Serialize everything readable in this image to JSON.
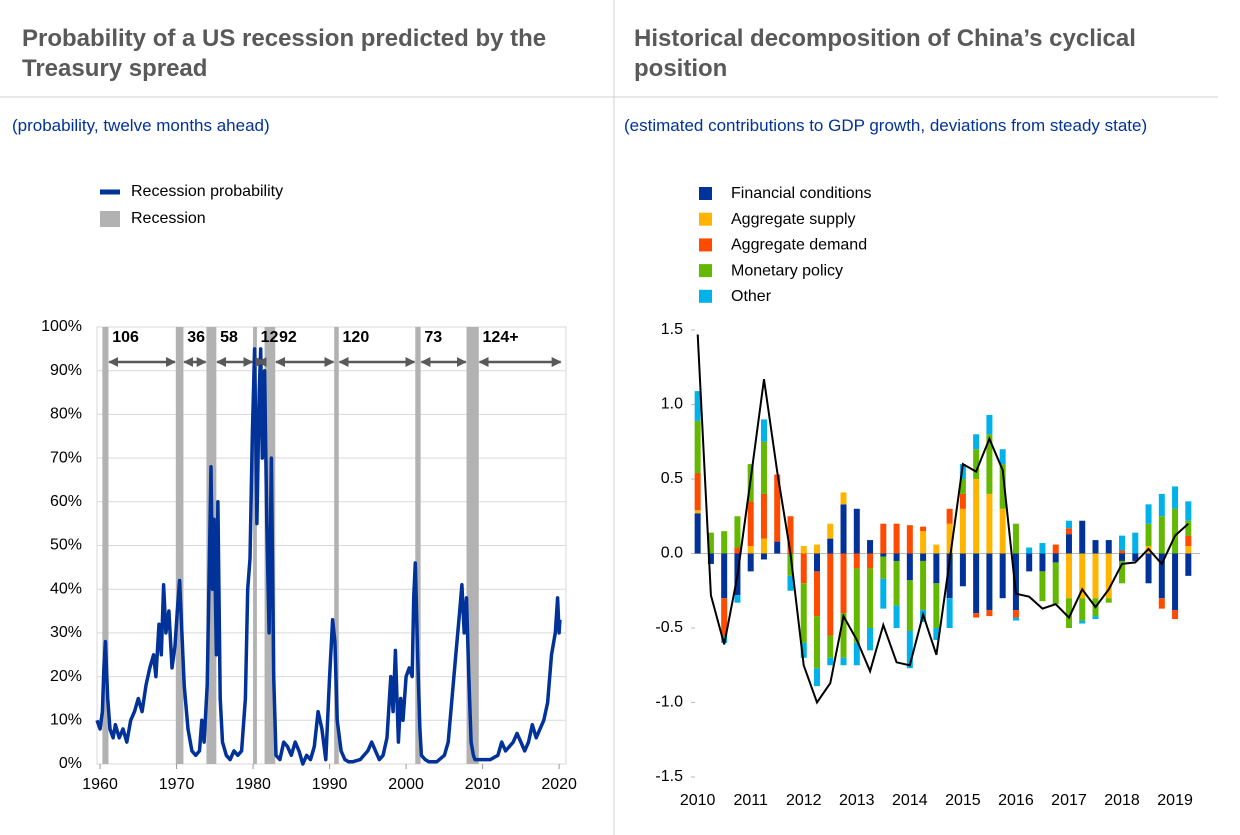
{
  "chart_data": [
    {
      "type": "line",
      "title": "Probability of a US recession predicted by the Treasury spread",
      "subtitle": "(probability, twelve months ahead)",
      "series": [
        {
          "name": "Recession probability",
          "color": "#003299",
          "x": [
            1959.6,
            1960.0,
            1960.3,
            1960.5,
            1960.7,
            1961.0,
            1961.3,
            1961.7,
            1962.0,
            1962.5,
            1963.0,
            1963.5,
            1964.0,
            1964.5,
            1965.0,
            1965.5,
            1966.0,
            1966.5,
            1967.0,
            1967.3,
            1967.7,
            1968.0,
            1968.3,
            1968.6,
            1969.0,
            1969.4,
            1969.8,
            1970.1,
            1970.4,
            1970.7,
            1971.0,
            1971.5,
            1972.0,
            1972.5,
            1973.0,
            1973.3,
            1973.6,
            1974.0,
            1974.3,
            1974.5,
            1974.7,
            1974.9,
            1975.2,
            1975.4,
            1975.7,
            1976.0,
            1976.5,
            1977.0,
            1977.5,
            1978.0,
            1978.5,
            1979.0,
            1979.3,
            1979.6,
            1979.9,
            1980.2,
            1980.5,
            1980.8,
            1981.0,
            1981.2,
            1981.5,
            1981.8,
            1982.1,
            1982.4,
            1982.7,
            1983.0,
            1983.5,
            1984.0,
            1984.5,
            1985.0,
            1985.5,
            1986.0,
            1986.5,
            1987.0,
            1987.5,
            1988.0,
            1988.5,
            1989.0,
            1989.5,
            1990.0,
            1990.4,
            1990.7,
            1991.0,
            1991.5,
            1992.0,
            1992.5,
            1993.0,
            1994.0,
            1995.0,
            1995.5,
            1996.0,
            1996.5,
            1997.0,
            1997.5,
            1998.0,
            1998.3,
            1998.6,
            1999.0,
            1999.3,
            1999.6,
            2000.0,
            2000.4,
            2000.8,
            2001.0,
            2001.2,
            2001.5,
            2001.8,
            2002.0,
            2002.5,
            2003.0,
            2004.0,
            2005.0,
            2005.5,
            2006.0,
            2006.5,
            2007.0,
            2007.3,
            2007.6,
            2007.9,
            2008.2,
            2008.5,
            2008.8,
            2009.0,
            2010.0,
            2011.0,
            2012.0,
            2012.5,
            2013.0,
            2013.5,
            2014.0,
            2014.5,
            2015.0,
            2015.5,
            2016.0,
            2016.5,
            2017.0,
            2017.5,
            2018.0,
            2018.5,
            2019.0,
            2019.5,
            2019.8,
            2020.0,
            2020.1
          ],
          "values": [
            10,
            8,
            12,
            22,
            28,
            15,
            8,
            6,
            9,
            6,
            8,
            5,
            10,
            12,
            15,
            12,
            18,
            22,
            25,
            20,
            32,
            25,
            41,
            30,
            35,
            22,
            27,
            35,
            42,
            30,
            18,
            8,
            3,
            2,
            3,
            10,
            5,
            18,
            48,
            68,
            40,
            56,
            25,
            60,
            15,
            5,
            2,
            1,
            3,
            2,
            3,
            15,
            40,
            47,
            75,
            95,
            55,
            85,
            95,
            70,
            90,
            55,
            30,
            70,
            20,
            2,
            1,
            5,
            4,
            2,
            5,
            3,
            0,
            2,
            1,
            4,
            12,
            8,
            1,
            20,
            33,
            28,
            10,
            3,
            1,
            0.5,
            0.5,
            1,
            3,
            5,
            3,
            1,
            2,
            6,
            20,
            12,
            26,
            5,
            15,
            10,
            20,
            22,
            20,
            38,
            46,
            25,
            8,
            2,
            1,
            0.5,
            0.5,
            2,
            5,
            15,
            25,
            35,
            41,
            30,
            38,
            20,
            5,
            2,
            1,
            1,
            1,
            2,
            5,
            3,
            4,
            5,
            7,
            5,
            3,
            5,
            9,
            6,
            8,
            10,
            14,
            25,
            30,
            38,
            30,
            33
          ]
        }
      ],
      "recessions": {
        "name": "Recession",
        "color": "#b2b2b2",
        "spans": [
          [
            1960.3,
            1961.1
          ],
          [
            1969.9,
            1970.9
          ],
          [
            1973.9,
            1975.2
          ],
          [
            1980.0,
            1980.5
          ],
          [
            1981.5,
            1982.9
          ],
          [
            1990.6,
            1991.2
          ],
          [
            2001.2,
            2001.9
          ],
          [
            2007.9,
            2009.5
          ]
        ]
      },
      "annotations": [
        {
          "label": "106",
          "start": 1961.2,
          "end": 1969.8
        },
        {
          "label": "36",
          "start": 1971.0,
          "end": 1973.8
        },
        {
          "label": "58",
          "start": 1975.3,
          "end": 1979.9
        },
        {
          "label": "12",
          "start": 1980.6,
          "end": 1981.5
        },
        {
          "label": "92",
          "start": 1983.0,
          "end": 1990.5
        },
        {
          "label": "120",
          "start": 1991.3,
          "end": 2001.1
        },
        {
          "label": "73",
          "start": 2002.0,
          "end": 2007.8
        },
        {
          "label": "124+",
          "start": 2009.6,
          "end": 2020.2
        }
      ],
      "xlim": [
        1959.6,
        2020.9
      ],
      "xticks": [
        1960,
        1970,
        1980,
        1990,
        2000,
        2010,
        2020
      ],
      "ylim": [
        0,
        100
      ],
      "yticks": [
        {
          "value": 0,
          "label": "0%"
        },
        {
          "value": 10,
          "label": "10%"
        },
        {
          "value": 20,
          "label": "20%"
        },
        {
          "value": 30,
          "label": "30%"
        },
        {
          "value": 40,
          "label": "40%"
        },
        {
          "value": 50,
          "label": "50%"
        },
        {
          "value": 60,
          "label": "60%"
        },
        {
          "value": 70,
          "label": "70%"
        },
        {
          "value": 80,
          "label": "80%"
        },
        {
          "value": 90,
          "label": "90%"
        },
        {
          "value": 100,
          "label": "100%"
        }
      ],
      "grid": true
    },
    {
      "type": "stacked-bar",
      "title": "Historical decomposition of China’s cyclical position",
      "subtitle": "(estimated contributions to GDP growth, deviations from steady state)",
      "x": [
        2010.0,
        2010.25,
        2010.5,
        2010.75,
        2011.0,
        2011.25,
        2011.5,
        2011.75,
        2012.0,
        2012.25,
        2012.5,
        2012.75,
        2013.0,
        2013.25,
        2013.5,
        2013.75,
        2014.0,
        2014.25,
        2014.5,
        2014.75,
        2015.0,
        2015.25,
        2015.5,
        2015.75,
        2016.0,
        2016.25,
        2016.5,
        2016.75,
        2017.0,
        2017.25,
        2017.5,
        2017.75,
        2018.0,
        2018.25,
        2018.5,
        2018.75,
        2019.0,
        2019.25
      ],
      "series": [
        {
          "name": "Financial conditions",
          "color": "#003299",
          "values": [
            0.27,
            -0.07,
            -0.3,
            -0.28,
            -0.12,
            -0.04,
            0.08,
            0,
            0,
            -0.12,
            0.1,
            0.33,
            0.3,
            0.09,
            -0.02,
            -0.05,
            -0.18,
            -0.05,
            -0.2,
            -0.3,
            -0.22,
            -0.4,
            -0.38,
            -0.3,
            -0.38,
            -0.12,
            -0.12,
            -0.06,
            0.13,
            0.22,
            0.09,
            0.09,
            -0.05,
            -0.05,
            -0.2,
            -0.3,
            -0.38,
            -0.15
          ]
        },
        {
          "name": "Aggregate supply",
          "color": "#ffb400",
          "values": [
            0.02,
            0,
            0,
            0,
            0.05,
            0.1,
            0,
            0,
            0.05,
            0.06,
            0.1,
            0.08,
            0,
            0,
            0,
            0,
            0,
            0.15,
            0.06,
            0.2,
            0.3,
            0.5,
            0.4,
            0.3,
            0,
            0,
            0,
            0,
            -0.3,
            -0.3,
            -0.3,
            -0.3,
            0,
            0,
            0.05,
            0,
            0,
            0.05
          ]
        },
        {
          "name": "Aggregate demand",
          "color": "#ff4b00",
          "values": [
            0.25,
            0,
            -0.25,
            0.04,
            0.3,
            0.3,
            0.45,
            0.25,
            -0.2,
            -0.3,
            -0.55,
            -0.4,
            -0.1,
            -0.1,
            0.2,
            0.2,
            0.19,
            0.03,
            0,
            0.1,
            0.1,
            -0.03,
            -0.04,
            0,
            -0.05,
            0,
            0,
            0.06,
            0.04,
            0,
            0,
            0,
            0.02,
            0,
            0,
            -0.07,
            -0.06,
            0.07
          ]
        },
        {
          "name": "Monetary policy",
          "color": "#65b800",
          "values": [
            0.35,
            0.14,
            0.15,
            0.21,
            0.25,
            0.35,
            0,
            -0.15,
            -0.4,
            -0.35,
            -0.15,
            -0.3,
            -0.5,
            -0.4,
            -0.15,
            -0.3,
            -0.34,
            -0.33,
            -0.3,
            0,
            0.1,
            0.2,
            0.4,
            0.3,
            0.2,
            0,
            -0.2,
            -0.28,
            -0.2,
            -0.15,
            -0.12,
            -0.03,
            -0.15,
            0,
            0.15,
            0.25,
            0.3,
            0.1
          ]
        },
        {
          "name": "Other",
          "color": "#00b1ea",
          "values": [
            0.2,
            0,
            -0.05,
            -0.05,
            0,
            0.15,
            0,
            -0.1,
            -0.1,
            -0.12,
            -0.05,
            -0.05,
            -0.15,
            -0.15,
            -0.2,
            -0.15,
            -0.25,
            -0.08,
            -0.08,
            -0.2,
            0.1,
            0.1,
            0.13,
            0.1,
            -0.02,
            0.04,
            0.07,
            0,
            0.05,
            -0.02,
            -0.02,
            0,
            0.1,
            0.14,
            0.13,
            0.15,
            0.15,
            0.13
          ]
        }
      ],
      "line": {
        "color": "#000000",
        "values": [
          1.47,
          -0.28,
          -0.61,
          -0.15,
          0.5,
          1.17,
          0.55,
          0,
          -0.75,
          -1,
          -0.87,
          -0.42,
          -0.58,
          -0.79,
          -0.48,
          -0.73,
          -0.75,
          -0.41,
          -0.68,
          -0.05,
          0.6,
          0.55,
          0.77,
          0.56,
          -0.27,
          -0.29,
          -0.37,
          -0.34,
          -0.43,
          -0.24,
          -0.36,
          -0.24,
          -0.07,
          -0.06,
          0.03,
          -0.07,
          0.12,
          0.2
        ]
      },
      "xlim": [
        2009.95,
        2019.47
      ],
      "xticks": [
        2010,
        2011,
        2012,
        2013,
        2014,
        2015,
        2016,
        2017,
        2018,
        2019
      ],
      "ylim": [
        -1.5,
        1.5
      ],
      "yticks": [
        -1.5,
        {
          "value": -1,
          "label": "-1.0"
        },
        -0.5,
        {
          "value": 0,
          "label": "0.0"
        },
        0.5,
        {
          "value": 1,
          "label": "1.0"
        },
        1.5
      ],
      "grid": false
    }
  ]
}
